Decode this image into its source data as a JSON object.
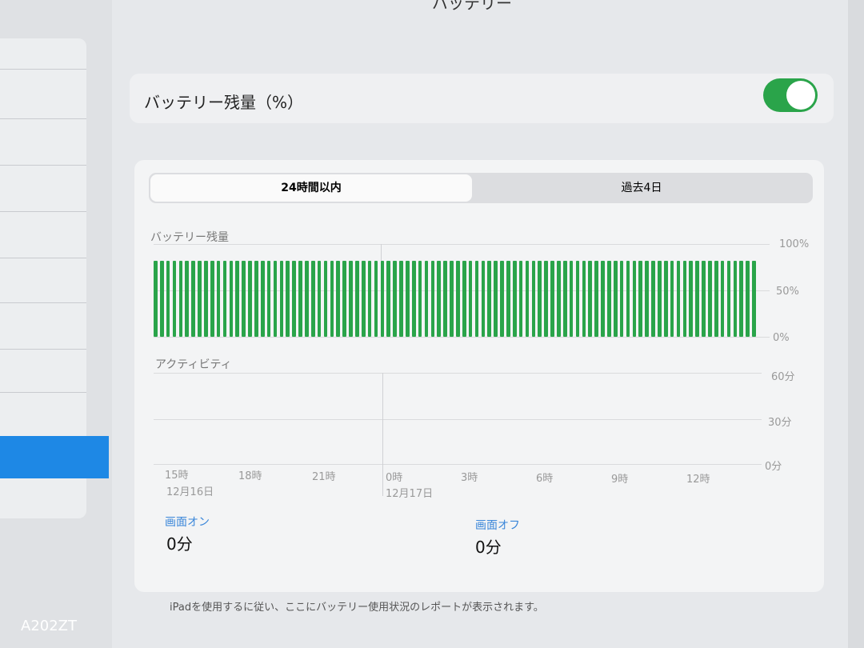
{
  "header": {
    "title": "バッテリー"
  },
  "battery_percentage": {
    "label": "バッテリー残量（%）",
    "enabled": true,
    "toggle_color": "#2aa44a"
  },
  "segments": [
    {
      "label": "24時間以内",
      "selected": true
    },
    {
      "label": "過去4日",
      "selected": false
    }
  ],
  "battery_chart": {
    "title": "バッテリー残量",
    "y_ticks": [
      "100%",
      "50%",
      "0%"
    ]
  },
  "activity_chart": {
    "title": "アクティビティ",
    "y_ticks": [
      "60分",
      "30分",
      "0分"
    ]
  },
  "x_ticks": [
    "15時",
    "18時",
    "21時",
    "0時",
    "3時",
    "6時",
    "9時",
    "12時"
  ],
  "dates": [
    "12月16日",
    "12月17日"
  ],
  "stats": [
    {
      "label": "画面オン",
      "value": "0分"
    },
    {
      "label": "画面オフ",
      "value": "0分"
    }
  ],
  "footer": "iPadを使用するに従い、ここにバッテリー使用状況のレポートが表示されます。",
  "watermark": "A202ZT",
  "chart_data": {
    "type": "bar",
    "title": "バッテリー残量",
    "bar_count": 96,
    "value_all_bars": 82,
    "ylim": [
      0,
      100
    ],
    "y_ticks": [
      "0%",
      "50%",
      "100%"
    ],
    "color": "#2aa44a",
    "x_tick_labels": [
      "15時",
      "18時",
      "21時",
      "0時",
      "3時",
      "6時",
      "9時",
      "12時"
    ]
  }
}
